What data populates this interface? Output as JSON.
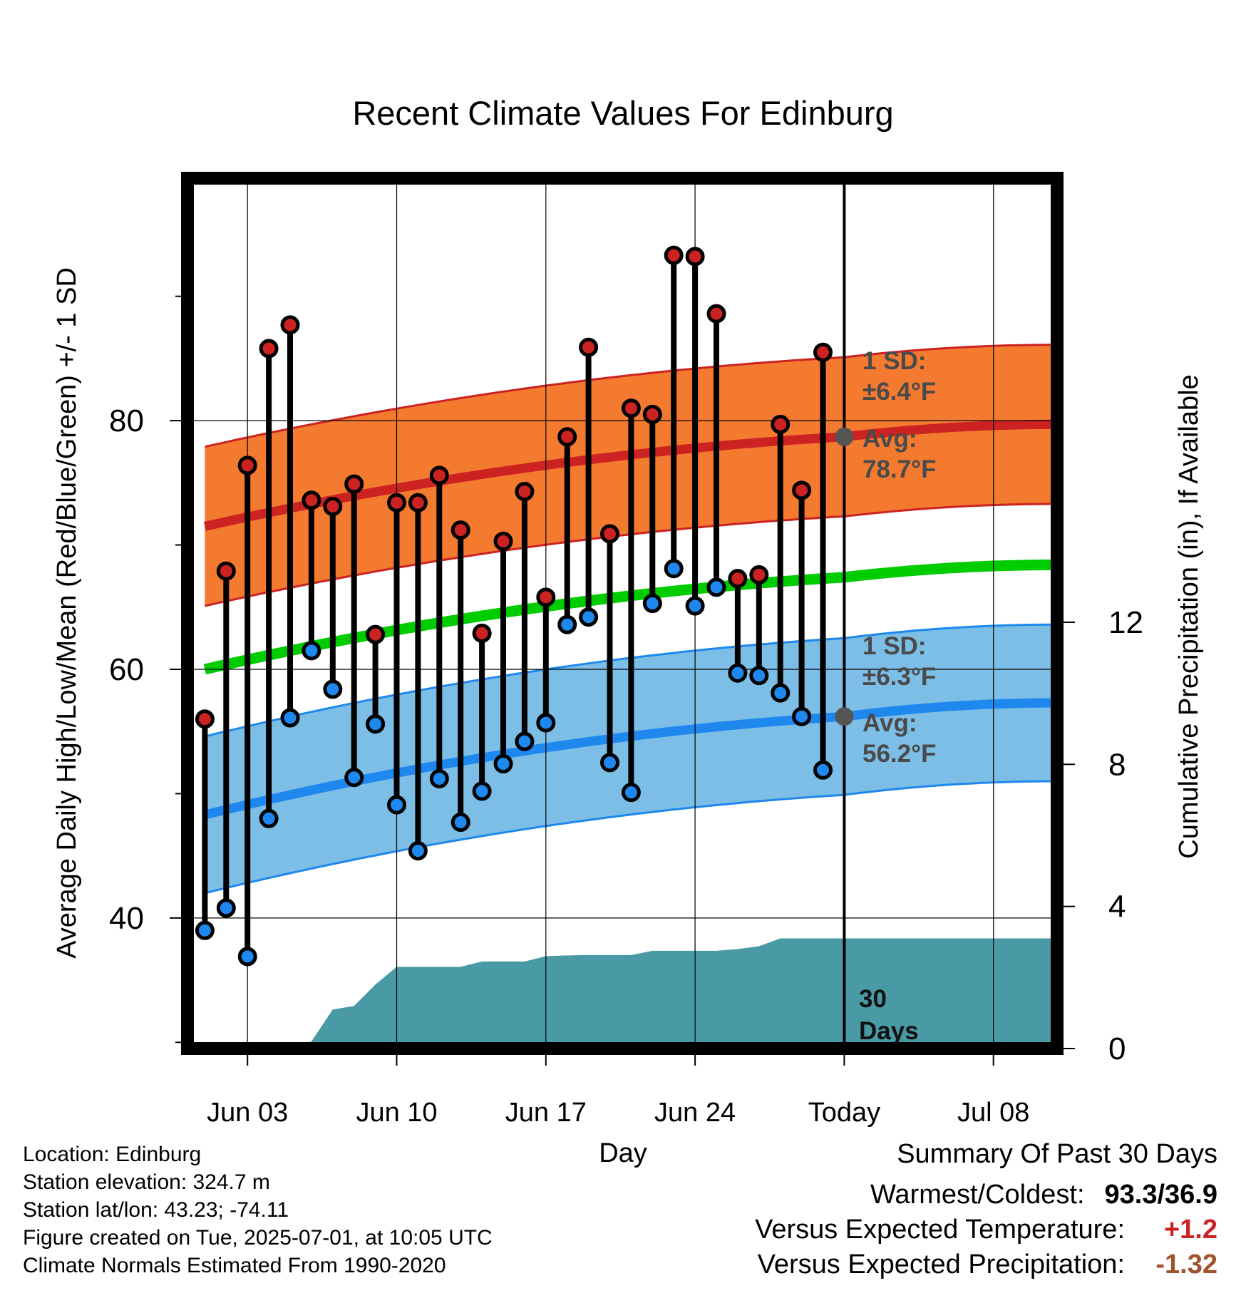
{
  "title": "Recent Climate Values For Edinburg",
  "chart_data": {
    "type": "line",
    "title": "Recent Climate Values For Edinburg",
    "xlabel": "Day",
    "ylabel_left": "Average Daily High/Low/Mean (Red/Blue/Green) +/- 1 SD",
    "ylabel_right": "Cumulative Precipitation (in), If Available",
    "x_ticks": [
      "Jun 03",
      "Jun 10",
      "Jun 17",
      "Jun 24",
      "Today",
      "Jul 08"
    ],
    "y_ticks_left": [
      "40",
      "60",
      "80"
    ],
    "y_ticks_right": [
      "0",
      "4",
      "8",
      "12"
    ],
    "ylim_left": [
      29.5,
      99.5
    ],
    "ylim_right": [
      0,
      24.5
    ],
    "x_days": [
      1,
      2,
      3,
      4,
      5,
      6,
      7,
      8,
      9,
      10,
      11,
      12,
      13,
      14,
      15,
      16,
      17,
      18,
      19,
      20,
      21,
      22,
      23,
      24,
      25,
      26,
      27,
      28,
      29,
      30
    ],
    "daily_high": [
      56.0,
      67.9,
      76.4,
      85.8,
      87.7,
      73.6,
      73.1,
      74.9,
      62.8,
      73.4,
      73.4,
      75.6,
      71.2,
      62.9,
      70.3,
      74.3,
      65.8,
      78.7,
      85.9,
      70.9,
      81.0,
      80.5,
      93.3,
      93.2,
      88.6,
      67.3,
      67.6,
      79.7,
      74.4,
      85.5
    ],
    "daily_low": [
      39.0,
      40.8,
      36.9,
      48.0,
      56.1,
      61.5,
      58.4,
      51.3,
      55.6,
      49.1,
      45.4,
      51.2,
      47.7,
      50.2,
      52.4,
      54.2,
      55.7,
      63.6,
      64.2,
      52.5,
      50.1,
      65.3,
      68.1,
      65.1,
      66.6,
      59.7,
      59.5,
      58.1,
      56.2,
      51.9
    ],
    "normal_high": {
      "start": 71.5,
      "today": 78.7,
      "end": 79.7,
      "sd": 6.4,
      "color": "#cc2222",
      "band_color": "#f47a30"
    },
    "normal_low": {
      "start": 48.3,
      "today": 56.2,
      "end": 57.3,
      "sd": 6.3,
      "color": "#1e88ee",
      "band_color": "#7dbee6"
    },
    "normal_mean": {
      "start": 60.0,
      "today": 67.4,
      "end": 68.4,
      "color": "#00cc00"
    },
    "cumulative_precip": {
      "x": [
        1,
        5,
        6,
        7,
        8,
        9,
        10,
        11,
        12,
        13,
        14,
        15,
        16,
        17,
        18,
        19,
        20,
        21,
        22,
        23,
        24,
        25,
        26,
        27,
        28,
        29,
        30,
        31,
        41.5
      ],
      "y": [
        0,
        0,
        0.2,
        1.1,
        1.2,
        1.8,
        2.3,
        2.3,
        2.3,
        2.3,
        2.45,
        2.45,
        2.45,
        2.6,
        2.62,
        2.63,
        2.63,
        2.63,
        2.75,
        2.75,
        2.75,
        2.75,
        2.8,
        2.88,
        3.1,
        3.1,
        3.1,
        3.1,
        3.1
      ],
      "color": "#4a9aa5"
    },
    "annotations": {
      "high_sd": "1 SD:\n±6.4°F",
      "high_avg": "Avg:\n78.7°F",
      "low_sd": "1 SD:\n±6.3°F",
      "low_avg": "Avg:\n56.2°F",
      "window": "30\nDays"
    },
    "grid": true
  },
  "footer": {
    "location": "Location: Edinburg",
    "elevation": "Station elevation: 324.7 m",
    "latlon": "Station lat/lon: 43.23; -74.11",
    "created": "Figure created on Tue, 2025-07-01, at 10:05 UTC",
    "normals": "Climate Normals Estimated From 1990-2020"
  },
  "summary": {
    "title": "Summary Of Past 30 Days",
    "warm_cold_label": "Warmest/Coldest:",
    "warm_cold_value": "93.3/36.9",
    "temp_label": "Versus Expected Temperature:",
    "temp_value": "+1.2",
    "temp_color": "#cc2222",
    "precip_label": "Versus Expected Precipitation:",
    "precip_value": "-1.32",
    "precip_color": "#a0522d"
  }
}
